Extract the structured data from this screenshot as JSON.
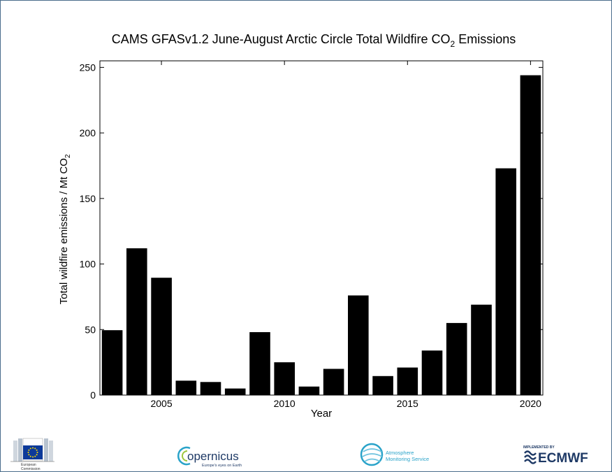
{
  "chart_data": {
    "type": "bar",
    "title": "CAMS GFASv1.2 June-August  Arctic Circle Total Wildfire CO₂ Emissions",
    "title_main": "CAMS GFASv1.2 June-August  Arctic Circle Total Wildfire CO",
    "title_sub": "2",
    "title_tail": " Emissions",
    "xlabel": "Year",
    "ylabel_main": "Total wildfire emissions / Mt CO",
    "ylabel_sub": "2",
    "x": [
      2003,
      2004,
      2005,
      2006,
      2007,
      2008,
      2009,
      2010,
      2011,
      2012,
      2013,
      2014,
      2015,
      2016,
      2017,
      2018,
      2019,
      2020
    ],
    "values": [
      49.5,
      112,
      89.5,
      11,
      10,
      5,
      48,
      25,
      6.5,
      20,
      76,
      14.5,
      21,
      34,
      55,
      69,
      173,
      244
    ],
    "xlim": [
      2002.5,
      2020.5
    ],
    "ylim": [
      0,
      255
    ],
    "xticks": [
      2005,
      2010,
      2015,
      2020
    ],
    "yticks": [
      0,
      50,
      100,
      150,
      200,
      250
    ],
    "bar_color": "#000000",
    "grid": false
  },
  "logos": {
    "ec": {
      "line1": "European",
      "line2": "Commission"
    },
    "copernicus": {
      "name": "opernicus",
      "tagline": "Europe's eyes on Earth"
    },
    "cams": {
      "line1": "Atmosphere",
      "line2": "Monitoring Service"
    },
    "ecmwf": {
      "kicker": "IMPLEMENTED BY",
      "name": "ECMWF"
    }
  }
}
